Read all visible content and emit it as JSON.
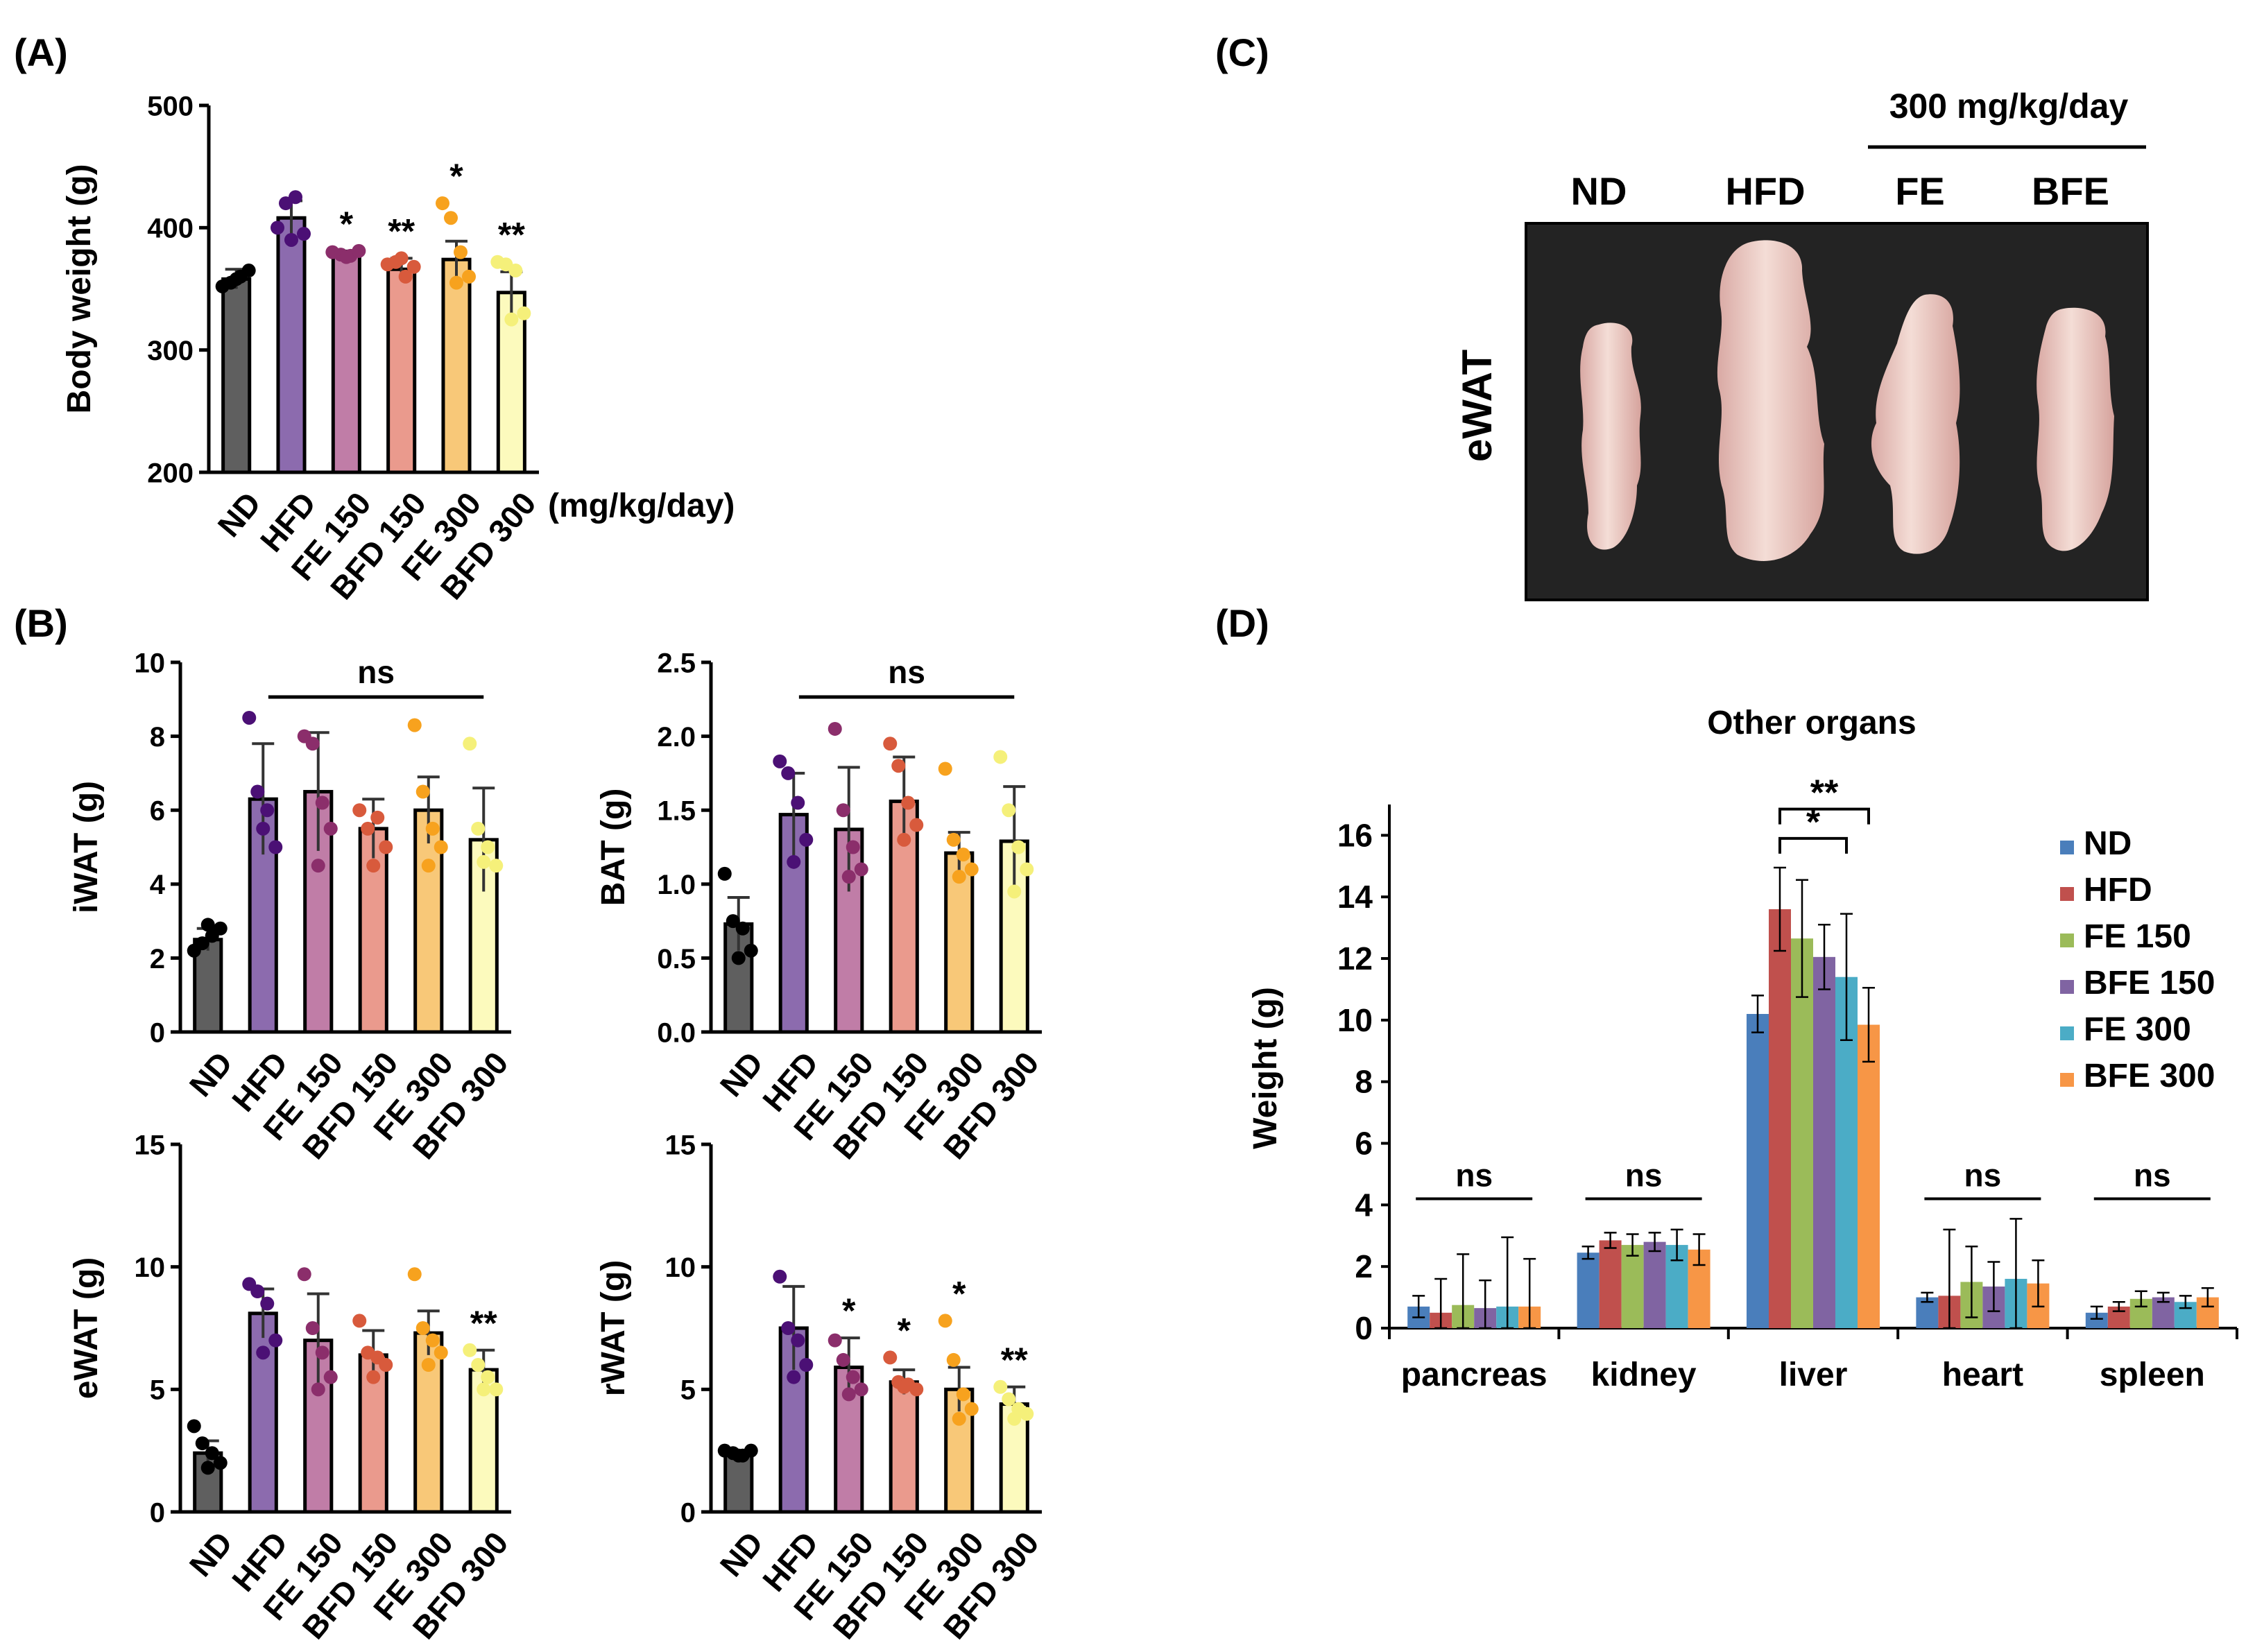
{
  "colors": {
    "ND": "#5f5f5f",
    "HFD": "#8c6bae",
    "FE 150": "#c07da7",
    "BFD 150": "#ea9a8d",
    "FE 300": "#f8c878",
    "BFD 300": "#fcfabd",
    "dot_ND": "#000000",
    "dot_HFD": "#4b1075",
    "dot_FE 150": "#8b2e6b",
    "dot_BFD 150": "#d85a3c",
    "dot_FE 300": "#f7a21e",
    "dot_BFD 300": "#f5f07a",
    "d_ND": "#4a7ebb",
    "d_HFD": "#c0504d",
    "d_FE 150": "#9bbb59",
    "d_BFE 150": "#8064a2",
    "d_FE 300": "#4bacc6",
    "d_BFE 300": "#f79646"
  },
  "panel_labels": {
    "A": "(A)",
    "B": "(B)",
    "C": "(C)",
    "D": "(D)"
  },
  "panel_c": {
    "bracket_label": "300 mg/kg/day",
    "columns": [
      "ND",
      "HFD",
      "FE",
      "BFE"
    ],
    "row_label": "eWAT"
  },
  "chart_data": [
    {
      "id": "A",
      "type": "bar",
      "title": "",
      "xlabel": "",
      "ylabel": "Body weight (g)",
      "unit_note": "(mg/kg/day)",
      "categories": [
        "ND",
        "HFD",
        "FE 150",
        "BFD 150",
        "FE 300",
        "BFD 300"
      ],
      "values": [
        358,
        408,
        378,
        366,
        374,
        347
      ],
      "errors": [
        8,
        14,
        3,
        9,
        15,
        17
      ],
      "points": [
        [
          352,
          355,
          360,
          365,
          358
        ],
        [
          400,
          420,
          425,
          395,
          390
        ],
        [
          380,
          378,
          377,
          381,
          376
        ],
        [
          370,
          372,
          360,
          368,
          375
        ],
        [
          420,
          408,
          380,
          360,
          355
        ],
        [
          372,
          370,
          365,
          330,
          325
        ]
      ],
      "significance": [
        "",
        "",
        "*",
        "**",
        "*",
        "**"
      ],
      "ylim": [
        200,
        500
      ],
      "yticks": [
        200,
        300,
        400,
        500
      ],
      "ytick_labels": [
        "200",
        "300",
        "400",
        "500"
      ]
    },
    {
      "id": "B1",
      "type": "bar",
      "ylabel": "iWAT (g)",
      "categories": [
        "ND",
        "HFD",
        "FE 150",
        "BFD 150",
        "FE 300",
        "BFD 300"
      ],
      "values": [
        2.5,
        6.3,
        6.5,
        5.5,
        6.0,
        5.2
      ],
      "errors": [
        0.3,
        1.5,
        1.6,
        0.8,
        0.9,
        1.4
      ],
      "points": [
        [
          2.2,
          2.4,
          2.6,
          2.8,
          2.9
        ],
        [
          8.5,
          6.5,
          6.0,
          5.0,
          5.5
        ],
        [
          8.0,
          7.8,
          6.2,
          5.5,
          4.5
        ],
        [
          6.0,
          5.5,
          5.8,
          5.0,
          4.5
        ],
        [
          8.3,
          6.5,
          5.5,
          5.0,
          4.5
        ],
        [
          7.8,
          5.5,
          5.0,
          4.5,
          4.6
        ]
      ],
      "significance": [
        "",
        "",
        "",
        "",
        "",
        ""
      ],
      "bracket": {
        "from": 1,
        "to": 5,
        "label": "ns"
      },
      "ylim": [
        0,
        10
      ],
      "yticks": [
        0,
        2,
        4,
        6,
        8,
        10
      ],
      "ytick_labels": [
        "0",
        "2",
        "4",
        "6",
        "8",
        "10"
      ]
    },
    {
      "id": "B2",
      "type": "bar",
      "ylabel": "BAT (g)",
      "categories": [
        "ND",
        "HFD",
        "FE 150",
        "BFD 150",
        "FE 300",
        "BFD 300"
      ],
      "values": [
        0.73,
        1.47,
        1.37,
        1.56,
        1.21,
        1.29
      ],
      "errors": [
        0.18,
        0.28,
        0.42,
        0.3,
        0.14,
        0.37
      ],
      "points": [
        [
          1.07,
          0.75,
          0.7,
          0.55,
          0.5
        ],
        [
          1.83,
          1.75,
          1.55,
          1.3,
          1.15
        ],
        [
          2.05,
          1.5,
          1.25,
          1.1,
          1.05
        ],
        [
          1.95,
          1.8,
          1.55,
          1.4,
          1.3
        ],
        [
          1.78,
          1.3,
          1.2,
          1.1,
          1.05
        ],
        [
          1.86,
          1.5,
          1.25,
          1.1,
          0.95
        ]
      ],
      "significance": [
        "",
        "",
        "",
        "",
        "",
        ""
      ],
      "bracket": {
        "from": 1,
        "to": 5,
        "label": "ns"
      },
      "ylim": [
        0,
        2.5
      ],
      "yticks": [
        0,
        0.5,
        1,
        1.5,
        2,
        2.5
      ],
      "ytick_labels": [
        "0.0",
        "0.5",
        "1.0",
        "1.5",
        "2.0",
        "2.5"
      ]
    },
    {
      "id": "B3",
      "type": "bar",
      "ylabel": "eWAT (g)",
      "categories": [
        "ND",
        "HFD",
        "FE 150",
        "BFD 150",
        "FE 300",
        "BFD 300"
      ],
      "values": [
        2.4,
        8.1,
        7.0,
        6.4,
        7.3,
        5.8
      ],
      "errors": [
        0.5,
        1.0,
        1.9,
        1.0,
        0.9,
        0.8
      ],
      "points": [
        [
          3.5,
          2.8,
          2.4,
          2.0,
          1.8
        ],
        [
          9.3,
          9.0,
          8.5,
          7.0,
          6.5
        ],
        [
          9.7,
          7.5,
          6.5,
          5.5,
          5.0
        ],
        [
          7.8,
          6.5,
          6.3,
          6.0,
          5.5
        ],
        [
          9.7,
          7.5,
          7.0,
          6.5,
          6.0
        ],
        [
          6.6,
          6.0,
          5.5,
          5.0,
          5.0
        ]
      ],
      "significance": [
        "",
        "",
        "",
        "",
        "",
        "**"
      ],
      "ylim": [
        0,
        15
      ],
      "yticks": [
        0,
        5,
        10,
        15
      ],
      "ytick_labels": [
        "0",
        "5",
        "10",
        "15"
      ]
    },
    {
      "id": "B4",
      "type": "bar",
      "ylabel": "rWAT (g)",
      "categories": [
        "ND",
        "HFD",
        "FE 150",
        "BFD 150",
        "FE 300",
        "BFD 300"
      ],
      "values": [
        2.4,
        7.5,
        5.9,
        5.3,
        5.0,
        4.4
      ],
      "errors": [
        0.1,
        1.7,
        1.2,
        0.5,
        0.9,
        0.7
      ],
      "points": [
        [
          2.5,
          2.4,
          2.3,
          2.5,
          2.3
        ],
        [
          9.6,
          7.5,
          7.0,
          6.0,
          5.5
        ],
        [
          7.0,
          6.2,
          5.5,
          5.0,
          4.8
        ],
        [
          6.3,
          5.3,
          5.2,
          5.0,
          5.1
        ],
        [
          7.8,
          6.2,
          4.8,
          4.2,
          3.8
        ],
        [
          5.1,
          4.6,
          4.2,
          4.0,
          3.8
        ]
      ],
      "significance": [
        "",
        "",
        "*",
        "*",
        "*",
        "**"
      ],
      "ylim": [
        0,
        15
      ],
      "yticks": [
        0,
        5,
        10,
        15
      ],
      "ytick_labels": [
        "0",
        "5",
        "10",
        "15"
      ]
    },
    {
      "id": "D",
      "type": "bar",
      "title": "Other organs",
      "xlabel": "",
      "ylabel": "Weight (g)",
      "categories": [
        "pancreas",
        "kidney",
        "liver",
        "heart",
        "spleen"
      ],
      "series": [
        {
          "name": "ND",
          "values": [
            0.7,
            2.45,
            10.2,
            1.0,
            0.5
          ],
          "errors": [
            0.35,
            0.2,
            0.6,
            0.15,
            0.2
          ]
        },
        {
          "name": "HFD",
          "values": [
            0.5,
            2.85,
            13.6,
            1.05,
            0.7
          ],
          "errors": [
            1.1,
            0.25,
            1.35,
            2.15,
            0.15
          ]
        },
        {
          "name": "FE 150",
          "values": [
            0.75,
            2.7,
            12.65,
            1.5,
            0.95
          ],
          "errors": [
            1.65,
            0.35,
            1.9,
            1.15,
            0.25
          ]
        },
        {
          "name": "BFE 150",
          "values": [
            0.65,
            2.8,
            12.05,
            1.35,
            1.0
          ],
          "errors": [
            0.9,
            0.3,
            1.05,
            0.8,
            0.15
          ]
        },
        {
          "name": "FE 300",
          "values": [
            0.7,
            2.7,
            11.4,
            1.6,
            0.85
          ],
          "errors": [
            2.25,
            0.5,
            2.05,
            1.95,
            0.2
          ]
        },
        {
          "name": "BFE 300",
          "values": [
            0.7,
            2.55,
            9.85,
            1.45,
            1.0
          ],
          "errors": [
            1.55,
            0.5,
            1.2,
            0.75,
            0.3
          ]
        }
      ],
      "significance": [
        {
          "category": "pancreas",
          "label": "ns"
        },
        {
          "category": "kidney",
          "label": "ns"
        },
        {
          "category": "liver",
          "label": "*",
          "from": "HFD",
          "to": "FE 300"
        },
        {
          "category": "liver",
          "label": "**",
          "from": "HFD",
          "to": "BFE 300"
        },
        {
          "category": "heart",
          "label": "ns"
        },
        {
          "category": "spleen",
          "label": "ns"
        }
      ],
      "legend_position": "right",
      "ylim": [
        0,
        17
      ],
      "yticks": [
        0,
        2,
        4,
        6,
        8,
        10,
        12,
        14,
        16
      ],
      "ytick_labels": [
        "0",
        "2",
        "4",
        "6",
        "8",
        "10",
        "12",
        "14",
        "16"
      ]
    }
  ]
}
